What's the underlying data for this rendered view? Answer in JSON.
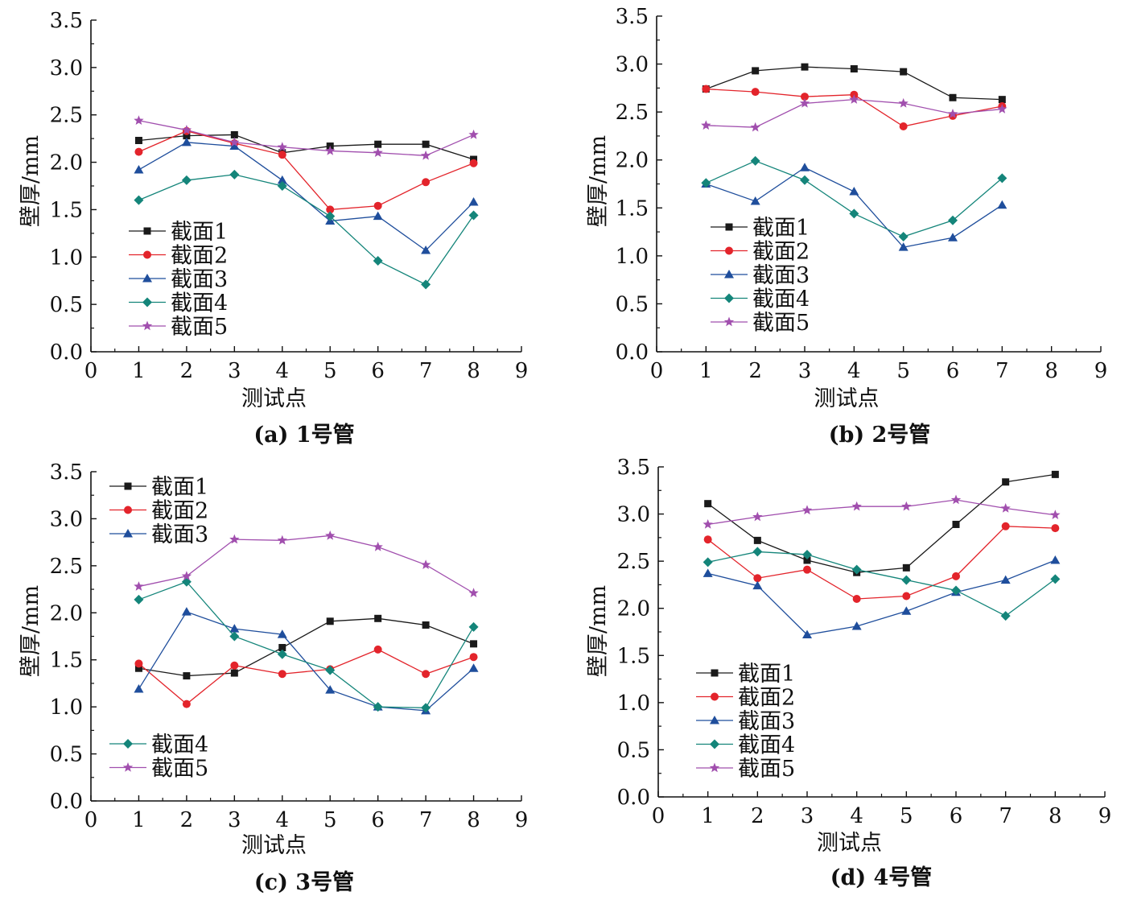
{
  "figure": {
    "colors": {
      "截面1": "#1a1a1a",
      "截面2": "#e3242b",
      "截面3": "#1f4e9c",
      "截面4": "#14857a",
      "截面5": "#a14fae",
      "axis": "#111111"
    },
    "markers": {
      "截面1": "square",
      "截面2": "circle",
      "截面3": "triangle",
      "截面4": "diamond",
      "截面5": "star"
    }
  },
  "chart_data": [
    {
      "type": "line",
      "caption": "(a) 1号管",
      "xlabel": "测试点",
      "ylabel": "壁厚/mm",
      "xlim": [
        0,
        9
      ],
      "ylim": [
        0,
        3.5
      ],
      "xticks": [
        "0",
        "1",
        "2",
        "3",
        "4",
        "5",
        "6",
        "7",
        "8",
        "9"
      ],
      "yticks": [
        "0.0",
        "0.5",
        "1.0",
        "1.5",
        "2.0",
        "2.5",
        "3.0",
        "3.5"
      ],
      "grid": false,
      "legend_groups": [
        {
          "position": "lower-left",
          "series": [
            "截面1",
            "截面2",
            "截面3",
            "截面4",
            "截面5"
          ]
        }
      ],
      "x": [
        1,
        2,
        3,
        4,
        5,
        6,
        7,
        8
      ],
      "series": [
        {
          "name": "截面1",
          "values": [
            2.23,
            2.28,
            2.29,
            2.1,
            2.17,
            2.19,
            2.19,
            2.03
          ]
        },
        {
          "name": "截面2",
          "values": [
            2.11,
            2.33,
            2.2,
            2.08,
            1.5,
            1.54,
            1.79,
            1.99
          ]
        },
        {
          "name": "截面3",
          "values": [
            1.92,
            2.21,
            2.17,
            1.81,
            1.38,
            1.43,
            1.07,
            1.58
          ]
        },
        {
          "name": "截面4",
          "values": [
            1.6,
            1.81,
            1.87,
            1.75,
            1.43,
            0.96,
            0.71,
            1.44
          ]
        },
        {
          "name": "截面5",
          "values": [
            2.44,
            2.34,
            2.21,
            2.16,
            2.12,
            2.1,
            2.07,
            2.29
          ]
        }
      ]
    },
    {
      "type": "line",
      "caption": "(b) 2号管",
      "xlabel": "测试点",
      "ylabel": "壁厚/mm",
      "xlim": [
        0,
        9
      ],
      "ylim": [
        0,
        3.5
      ],
      "xticks": [
        "0",
        "1",
        "2",
        "3",
        "4",
        "5",
        "6",
        "7",
        "8",
        "9"
      ],
      "yticks": [
        "0.0",
        "0.5",
        "1.0",
        "1.5",
        "2.0",
        "2.5",
        "3.0",
        "3.5"
      ],
      "grid": false,
      "legend_groups": [
        {
          "position": "lower-left",
          "series": [
            "截面1",
            "截面2",
            "截面3",
            "截面4",
            "截面5"
          ]
        }
      ],
      "x": [
        1,
        2,
        3,
        4,
        5,
        6,
        7
      ],
      "series": [
        {
          "name": "截面1",
          "values": [
            2.74,
            2.93,
            2.97,
            2.95,
            2.92,
            2.65,
            2.63
          ]
        },
        {
          "name": "截面2",
          "values": [
            2.74,
            2.71,
            2.66,
            2.68,
            2.35,
            2.46,
            2.56
          ]
        },
        {
          "name": "截面3",
          "values": [
            1.75,
            1.57,
            1.92,
            1.67,
            1.09,
            1.19,
            1.53
          ]
        },
        {
          "name": "截面4",
          "values": [
            1.76,
            1.99,
            1.79,
            1.44,
            1.2,
            1.37,
            1.81
          ]
        },
        {
          "name": "截面5",
          "values": [
            2.36,
            2.34,
            2.59,
            2.63,
            2.59,
            2.48,
            2.53
          ]
        }
      ]
    },
    {
      "type": "line",
      "caption": "(c) 3号管",
      "xlabel": "测试点",
      "ylabel": "壁厚/mm",
      "xlim": [
        0,
        9
      ],
      "ylim": [
        0,
        3.5
      ],
      "xticks": [
        "0",
        "1",
        "2",
        "3",
        "4",
        "5",
        "6",
        "7",
        "8",
        "9"
      ],
      "yticks": [
        "0.0",
        "0.5",
        "1.0",
        "1.5",
        "2.0",
        "2.5",
        "3.0",
        "3.5"
      ],
      "grid": false,
      "legend_groups": [
        {
          "position": "top-left",
          "series": [
            "截面1",
            "截面2",
            "截面3"
          ]
        },
        {
          "position": "bottom-left",
          "series": [
            "截面4",
            "截面5"
          ]
        }
      ],
      "x": [
        1,
        2,
        3,
        4,
        5,
        6,
        7,
        8
      ],
      "series": [
        {
          "name": "截面1",
          "values": [
            1.41,
            1.33,
            1.36,
            1.63,
            1.91,
            1.94,
            1.87,
            1.67
          ]
        },
        {
          "name": "截面2",
          "values": [
            1.46,
            1.03,
            1.44,
            1.35,
            1.4,
            1.61,
            1.35,
            1.53
          ]
        },
        {
          "name": "截面3",
          "values": [
            1.19,
            2.01,
            1.83,
            1.77,
            1.18,
            1.0,
            0.96,
            1.41
          ]
        },
        {
          "name": "截面4",
          "values": [
            2.14,
            2.33,
            1.75,
            1.56,
            1.39,
            1.0,
            0.99,
            1.85
          ]
        },
        {
          "name": "截面5",
          "values": [
            2.28,
            2.39,
            2.78,
            2.77,
            2.82,
            2.7,
            2.51,
            2.21
          ]
        }
      ]
    },
    {
      "type": "line",
      "caption": "(d) 4号管",
      "xlabel": "测试点",
      "ylabel": "壁厚/mm",
      "xlim": [
        0,
        9
      ],
      "ylim": [
        0,
        3.5
      ],
      "xticks": [
        "0",
        "1",
        "2",
        "3",
        "4",
        "5",
        "6",
        "7",
        "8",
        "9"
      ],
      "yticks": [
        "0.0",
        "0.5",
        "1.0",
        "1.5",
        "2.0",
        "2.5",
        "3.0",
        "3.5"
      ],
      "grid": false,
      "legend_groups": [
        {
          "position": "lower-left",
          "series": [
            "截面1",
            "截面2",
            "截面3",
            "截面4",
            "截面5"
          ]
        }
      ],
      "x": [
        1,
        2,
        3,
        4,
        5,
        6,
        7,
        8
      ],
      "series": [
        {
          "name": "截面1",
          "values": [
            3.11,
            2.72,
            2.51,
            2.38,
            2.43,
            2.89,
            3.34,
            3.42
          ]
        },
        {
          "name": "截面2",
          "values": [
            2.73,
            2.32,
            2.41,
            2.1,
            2.13,
            2.34,
            2.87,
            2.85
          ]
        },
        {
          "name": "截面3",
          "values": [
            2.37,
            2.24,
            1.72,
            1.81,
            1.97,
            2.17,
            2.3,
            2.51
          ]
        },
        {
          "name": "截面4",
          "values": [
            2.49,
            2.6,
            2.57,
            2.41,
            2.3,
            2.19,
            1.92,
            2.31
          ]
        },
        {
          "name": "截面5",
          "values": [
            2.89,
            2.97,
            3.04,
            3.08,
            3.08,
            3.15,
            3.06,
            2.99
          ]
        }
      ]
    }
  ]
}
